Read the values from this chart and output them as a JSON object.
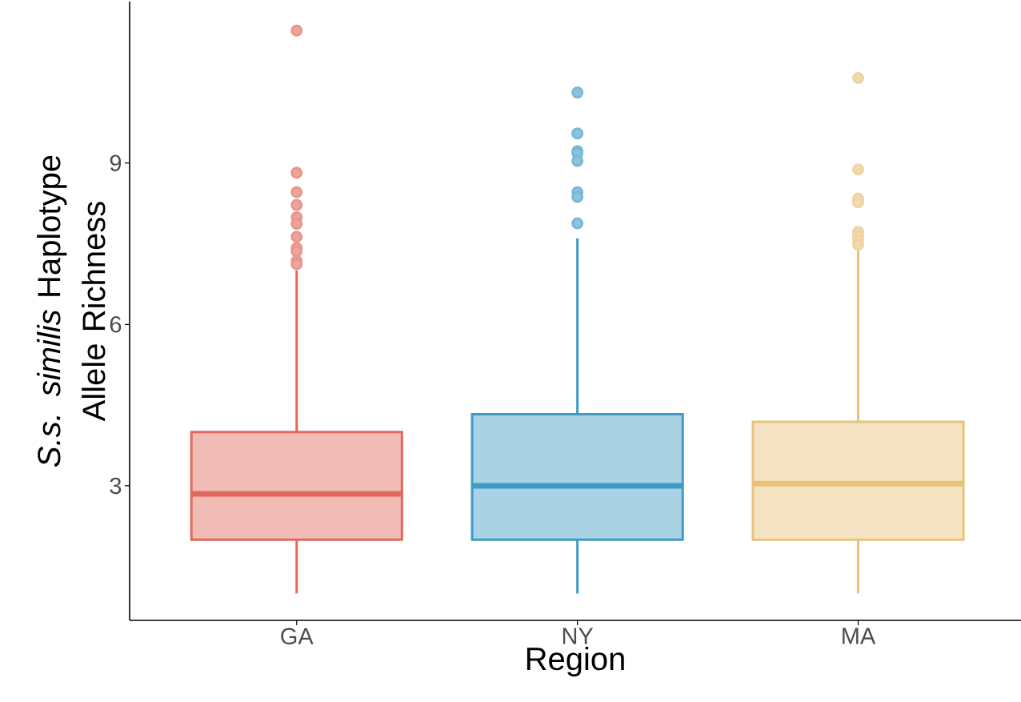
{
  "chart_data": {
    "type": "box",
    "xlabel": "Region",
    "ylabel": "*S.s. similis* Haplotype Allele Richness",
    "categories": [
      "GA",
      "NY",
      "MA"
    ],
    "colors": [
      "#e0695c",
      "#3f9bc6",
      "#e8c27a"
    ],
    "boxes": [
      {
        "low": 1.0,
        "q1": 2.0,
        "median": 2.85,
        "q3": 4.0,
        "high": 7.0,
        "outliers": [
          11.46,
          8.82,
          8.46,
          8.22,
          7.99,
          7.87,
          7.63,
          7.42,
          7.36,
          7.18,
          7.12
        ]
      },
      {
        "low": 1.0,
        "q1": 2.0,
        "median": 3.0,
        "q3": 4.33,
        "high": 7.6,
        "outliers": [
          10.31,
          9.55,
          9.22,
          9.18,
          9.04,
          8.46,
          8.37,
          7.88
        ]
      },
      {
        "low": 1.0,
        "q1": 2.0,
        "median": 3.04,
        "q3": 4.19,
        "high": 7.45,
        "outliers": [
          10.58,
          8.88,
          8.34,
          8.27,
          7.72,
          7.64,
          7.57,
          7.48
        ]
      }
    ],
    "marker": "circle",
    "ylim": [
      0.5,
      12
    ],
    "yticks": [
      3,
      6,
      9
    ]
  }
}
